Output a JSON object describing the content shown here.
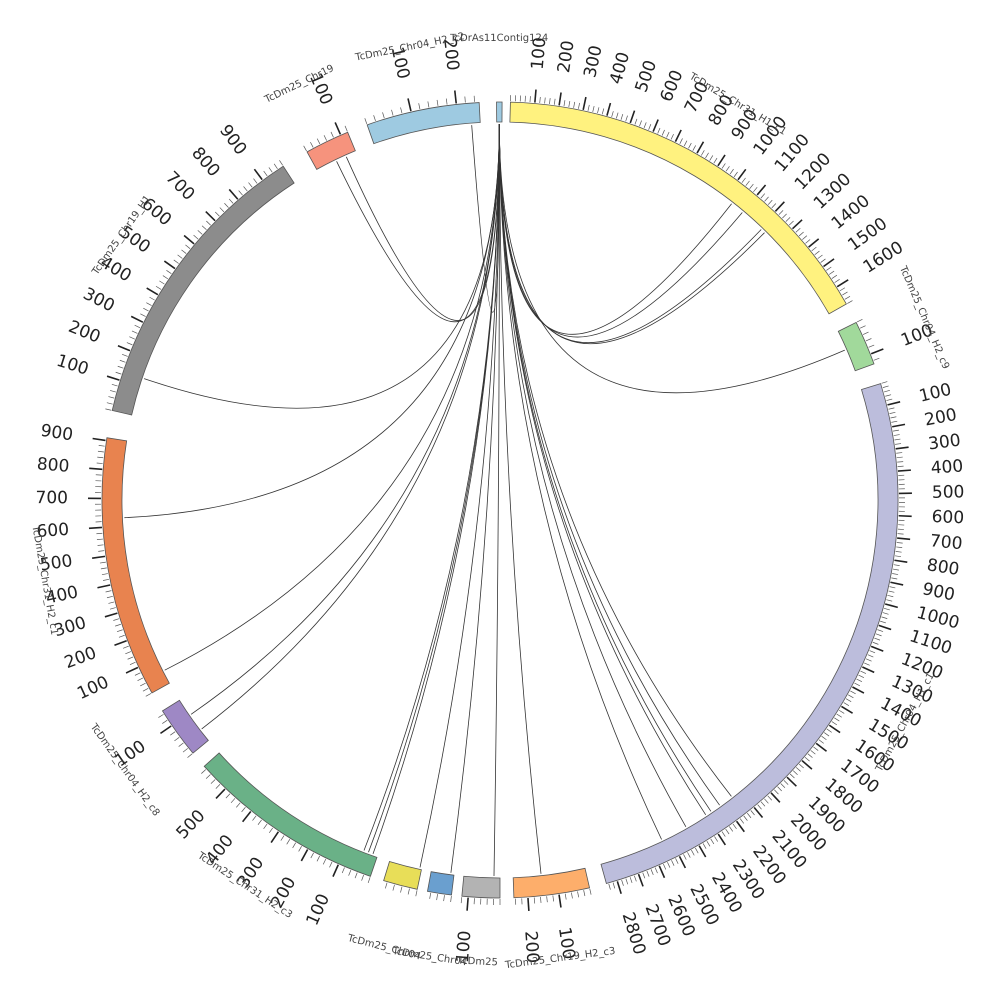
{
  "diagram": {
    "type": "circos",
    "segments": [
      {
        "id": "contig",
        "name": "TcDrAs11Contig124",
        "length": 18,
        "color": "#9ecae1",
        "ticks": []
      },
      {
        "id": "chr31h1c1",
        "name": "TcDm25_Chr31_H1_c1",
        "length": 1680,
        "color": "#fff27f",
        "ticks": [
          "100",
          "200",
          "300",
          "400",
          "500",
          "600",
          "700",
          "800",
          "900",
          "1000",
          "1100",
          "1200",
          "1300",
          "1400",
          "1500",
          "1600"
        ]
      },
      {
        "id": "chr04h2c9",
        "name": "TcDm25_Chr04_H2_c9",
        "length": 130,
        "color": "#a1d99b",
        "ticks": [
          "100"
        ]
      },
      {
        "id": "chr04h1c1",
        "name": "TcDm25_Chr04_H1_c1",
        "length": 2850,
        "color": "#bcbddc",
        "ticks": [
          "100",
          "200",
          "300",
          "400",
          "500",
          "600",
          "700",
          "800",
          "900",
          "1000",
          "1100",
          "1200",
          "1300",
          "1400",
          "1500",
          "1600",
          "1700",
          "1800",
          "1900",
          "2000",
          "2100",
          "2200",
          "2300",
          "2400",
          "2500",
          "2600",
          "2700",
          "2800"
        ]
      },
      {
        "id": "chr19h2c3",
        "name": "TcDm25_Chr19_H2_c3",
        "length": 245,
        "color": "#fdae6b",
        "ticks": [
          "100",
          "200"
        ]
      },
      {
        "id": "seg_gray_small",
        "name": "TcDm25",
        "length": 120,
        "color": "#b3b3b3",
        "ticks": [
          "100"
        ]
      },
      {
        "id": "seg_blue_small",
        "name": "TcDm25_Chr04",
        "length": 70,
        "color": "#6a9fcf",
        "ticks": []
      },
      {
        "id": "seg_yellow_small",
        "name": "TcDm25_Chr04",
        "length": 90,
        "color": "#e8de58",
        "ticks": []
      },
      {
        "id": "chr31h2c3",
        "name": "TcDm25_Chr31_H2_c3",
        "length": 590,
        "color": "#6ab187",
        "ticks": [
          "100",
          "200",
          "300",
          "400",
          "500"
        ]
      },
      {
        "id": "chr04h2c8",
        "name": "TcDm25_Chr04_H2_c8",
        "length": 150,
        "color": "#9e88c5",
        "ticks": [
          "100"
        ]
      },
      {
        "id": "chr31h2c1",
        "name": "TcDm25_Chr31_H2_c1",
        "length": 910,
        "color": "#e8834f",
        "ticks": [
          "100",
          "200",
          "300",
          "400",
          "500",
          "600",
          "700",
          "800",
          "900"
        ]
      },
      {
        "id": "chr19h1",
        "name": "TcDm25_Chr19_H1",
        "length": 980,
        "color": "#8c8c8c",
        "ticks": [
          "100",
          "200",
          "300",
          "400",
          "500",
          "600",
          "700",
          "800",
          "900"
        ]
      },
      {
        "id": "chr19salmon",
        "name": "TcDm25_Chr19",
        "length": 120,
        "color": "#f6937d",
        "ticks": [
          "100"
        ]
      },
      {
        "id": "chr04h2",
        "name": "TcDm25_Chr04_H2_c2",
        "length": 250,
        "color": "#9ecae1",
        "ticks": [
          "100",
          "200"
        ]
      }
    ],
    "links": [
      {
        "source": "contig",
        "target": "chr31h1c1",
        "position": 1040,
        "color": "#4a6fa5"
      },
      {
        "source": "contig",
        "target": "chr31h1c1",
        "position": 1100,
        "color": "#d14a2b"
      },
      {
        "source": "contig",
        "target": "chr31h1c1",
        "position": 1210,
        "color": "#3a3a3a"
      },
      {
        "source": "contig",
        "target": "chr31h1c1",
        "position": 1230,
        "color": "#2f5f8a"
      },
      {
        "source": "contig",
        "target": "chr04h2c9",
        "position": 60,
        "color": "#6b8e23"
      },
      {
        "source": "contig",
        "target": "chr04h1c1",
        "position": 2150,
        "color": "#2f5f8a"
      },
      {
        "source": "contig",
        "target": "chr04h1c1",
        "position": 2220,
        "color": "#3a3a3a"
      },
      {
        "source": "contig",
        "target": "chr04h1c1",
        "position": 2270,
        "color": "#2e7d32"
      },
      {
        "source": "contig",
        "target": "chr04h1c1",
        "position": 2300,
        "color": "#4a6fa5"
      },
      {
        "source": "contig",
        "target": "chr04h1c1",
        "position": 2410,
        "color": "#1f4e79"
      },
      {
        "source": "contig",
        "target": "chr04h1c1",
        "position": 2540,
        "color": "#8b3a3a"
      },
      {
        "source": "contig",
        "target": "chr19h2c3",
        "position": 150,
        "color": "#444444"
      },
      {
        "source": "contig",
        "target": "seg_gray_small",
        "position": 20,
        "color": "#b8a000"
      },
      {
        "source": "contig",
        "target": "seg_blue_small",
        "position": 10,
        "color": "#3a3a3a"
      },
      {
        "source": "contig",
        "target": "seg_yellow_small",
        "position": 5,
        "color": "#3a3a3a"
      },
      {
        "source": "contig",
        "target": "chr31h2c3",
        "position": 15,
        "color": "#3a3a3a"
      },
      {
        "source": "contig",
        "target": "chr31h2c3",
        "position": 30,
        "color": "#e07b00"
      },
      {
        "source": "contig",
        "target": "chr31h2c3",
        "position": 45,
        "color": "#c0392b"
      },
      {
        "source": "contig",
        "target": "chr04h2c8",
        "position": 40,
        "color": "#8b3a3a"
      },
      {
        "source": "contig",
        "target": "chr04h2c8",
        "position": 95,
        "color": "#3a3a3a"
      },
      {
        "source": "contig",
        "target": "chr31h2c1",
        "position": 50,
        "color": "#3a3a3a"
      },
      {
        "source": "contig",
        "target": "chr31h2c1",
        "position": 630,
        "color": "#2f5f8a"
      },
      {
        "source": "contig",
        "target": "chr19h1",
        "position": 130,
        "color": "#b8a000"
      },
      {
        "source": "contig",
        "target": "chr19salmon",
        "position": 60,
        "color": "#2e7d32"
      },
      {
        "source": "contig",
        "target": "chr19salmon",
        "position": 90,
        "color": "#8b3a3a"
      },
      {
        "source": "contig",
        "target": "chr04h2",
        "position": 230,
        "color": "#3a3a3a"
      }
    ]
  }
}
